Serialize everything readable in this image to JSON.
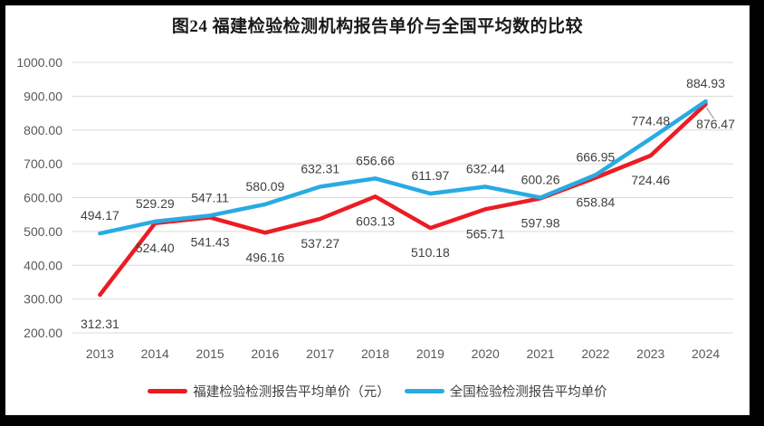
{
  "title": "图24 福建检验检测机构报告单价与全国平均数的比较",
  "chart_data": {
    "type": "line",
    "title": "图24 福建检验检测机构报告单价与全国平均数的比较",
    "categories": [
      "2013",
      "2014",
      "2015",
      "2016",
      "2017",
      "2018",
      "2019",
      "2020",
      "2021",
      "2022",
      "2023",
      "2024"
    ],
    "series": [
      {
        "name": "福建检验检测报告平均单价（元）",
        "color": "#EC1C24",
        "label_position": "below",
        "values": [
          312.31,
          524.4,
          541.43,
          496.16,
          537.27,
          603.13,
          510.18,
          565.71,
          597.98,
          658.84,
          724.46,
          876.47
        ]
      },
      {
        "name": "全国检验检测报告平均单价",
        "color": "#29ABE2",
        "label_position": "above",
        "values": [
          494.17,
          529.29,
          547.11,
          580.09,
          632.31,
          656.66,
          611.97,
          632.44,
          600.26,
          666.95,
          774.48,
          884.93
        ]
      }
    ],
    "y_axis": {
      "min": 200,
      "max": 1000,
      "step": 100,
      "tick_labels": [
        "200.00",
        "300.00",
        "400.00",
        "500.00",
        "600.00",
        "700.00",
        "800.00",
        "900.00",
        "1000.00"
      ]
    },
    "value_format_decimals": 2,
    "grid": true,
    "legend_position": "bottom",
    "annotations": {
      "last_fujian_label_has_leader_line": true
    }
  },
  "colors": {
    "frame": "#000000",
    "background": "#FFFFFF",
    "gridline": "#D9D9D9",
    "axis_text": "#595959",
    "data_label": "#404040",
    "legend_text": "#404040",
    "title_text": "#1A1A1A",
    "leader_line": "#A6A6A6"
  }
}
